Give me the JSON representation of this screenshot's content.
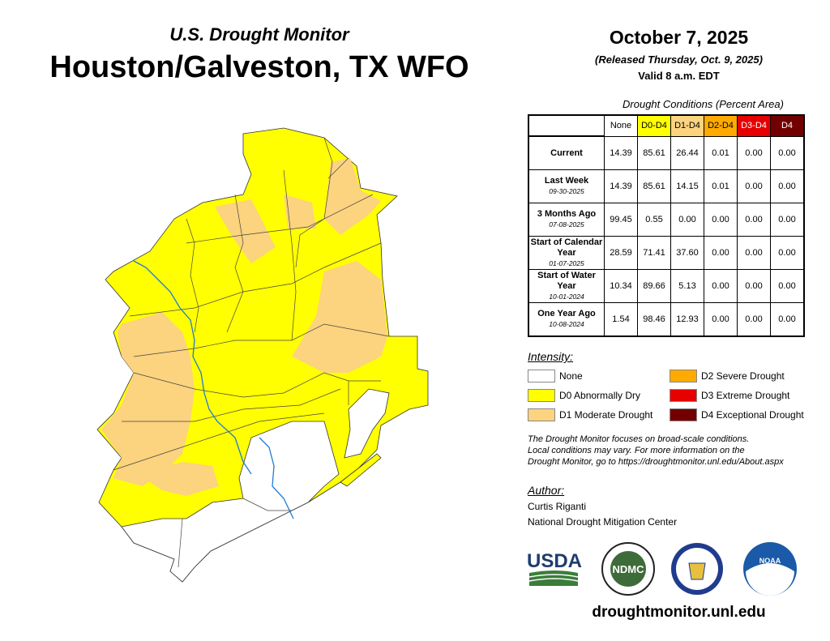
{
  "header": {
    "subtitle": "U.S. Drought Monitor",
    "title": "Houston/Galveston, TX WFO",
    "date": "October 7, 2025",
    "released": "(Released Thursday, Oct. 9, 2025)",
    "valid": "Valid 8 a.m. EDT"
  },
  "table": {
    "caption": "Drought Conditions (Percent Area)",
    "columns": [
      {
        "label": "None",
        "color": "#ffffff",
        "text": "#000"
      },
      {
        "label": "D0-D4",
        "color": "#ffff00",
        "text": "#000"
      },
      {
        "label": "D1-D4",
        "color": "#fcd37f",
        "text": "#000"
      },
      {
        "label": "D2-D4",
        "color": "#ffaa00",
        "text": "#000"
      },
      {
        "label": "D3-D4",
        "color": "#e60000",
        "text": "#fff"
      },
      {
        "label": "D4",
        "color": "#730000",
        "text": "#fff"
      }
    ],
    "rows": [
      {
        "label": "Current",
        "date": "",
        "values": [
          "14.39",
          "85.61",
          "26.44",
          "0.01",
          "0.00",
          "0.00"
        ]
      },
      {
        "label": "Last Week",
        "date": "09-30-2025",
        "values": [
          "14.39",
          "85.61",
          "14.15",
          "0.01",
          "0.00",
          "0.00"
        ]
      },
      {
        "label": "3 Months Ago",
        "date": "07-08-2025",
        "values": [
          "99.45",
          "0.55",
          "0.00",
          "0.00",
          "0.00",
          "0.00"
        ]
      },
      {
        "label": "Start of Calendar Year",
        "date": "01-07-2025",
        "values": [
          "28.59",
          "71.41",
          "37.60",
          "0.00",
          "0.00",
          "0.00"
        ]
      },
      {
        "label": "Start of Water Year",
        "date": "10-01-2024",
        "values": [
          "10.34",
          "89.66",
          "5.13",
          "0.00",
          "0.00",
          "0.00"
        ]
      },
      {
        "label": "One Year Ago",
        "date": "10-08-2024",
        "values": [
          "1.54",
          "98.46",
          "12.93",
          "0.00",
          "0.00",
          "0.00"
        ]
      }
    ]
  },
  "legend": {
    "heading": "Intensity:",
    "items": [
      {
        "label": "None",
        "color": "#ffffff"
      },
      {
        "label": "D0 Abnormally Dry",
        "color": "#ffff00"
      },
      {
        "label": "D1 Moderate Drought",
        "color": "#fcd37f"
      },
      {
        "label": "D2 Severe Drought",
        "color": "#ffaa00"
      },
      {
        "label": "D3 Extreme Drought",
        "color": "#e60000"
      },
      {
        "label": "D4 Exceptional Drought",
        "color": "#730000"
      }
    ]
  },
  "note": [
    "The Drought Monitor focuses on broad-scale conditions.",
    "Local conditions may vary. For more information on the",
    "Drought Monitor, go to https://droughtmonitor.unl.edu/About.aspx"
  ],
  "author": {
    "heading": "Author:",
    "name": "Curtis Riganti",
    "org": "National Drought Mitigation Center"
  },
  "logos": {
    "usda": "USDA",
    "ndmc": "NDMC",
    "noaa": "NOAA"
  },
  "url": "droughtmonitor.unl.edu"
}
